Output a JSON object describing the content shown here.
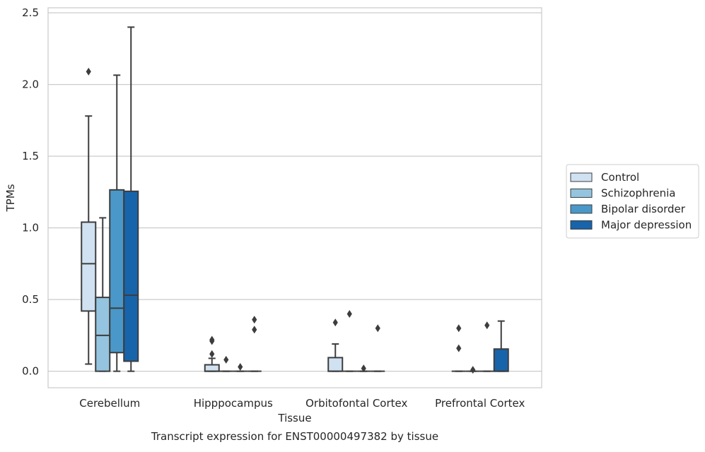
{
  "caption": "Transcript expression for ENST00000497382 by tissue",
  "chart_data": {
    "type": "box",
    "xlabel": "Tissue",
    "ylabel": "TPMs",
    "ylim": [
      -0.115,
      2.535
    ],
    "yticks": [
      0.0,
      0.5,
      1.0,
      1.5,
      2.0,
      2.5
    ],
    "ytick_labels": [
      "0.0",
      "0.5",
      "1.0",
      "1.5",
      "2.0",
      "2.5"
    ],
    "categories": [
      "Cerebellum",
      "Hipppocampus",
      "Orbitofontal Cortex",
      "Prefrontal Cortex"
    ],
    "grid": "horizontal",
    "legend_position": "right",
    "series": [
      {
        "name": "Control",
        "color": "#d0e1f2",
        "boxes": [
          {
            "whislo": 0.05,
            "q1": 0.42,
            "med": 0.75,
            "q3": 1.04,
            "whishi": 1.78,
            "fliers": [
              2.09
            ]
          },
          {
            "whislo": 0.0,
            "q1": 0.0,
            "med": 0.0,
            "q3": 0.045,
            "whishi": 0.09,
            "fliers": [
              0.12,
              0.21,
              0.22
            ]
          },
          {
            "whislo": 0.0,
            "q1": 0.0,
            "med": 0.0,
            "q3": 0.095,
            "whishi": 0.19,
            "fliers": [
              0.34
            ]
          },
          {
            "whislo": 0.0,
            "q1": 0.0,
            "med": 0.0,
            "q3": 0.0,
            "whishi": 0.0,
            "fliers": [
              0.16,
              0.3
            ]
          }
        ]
      },
      {
        "name": "Schizophrenia",
        "color": "#94c4df",
        "boxes": [
          {
            "whislo": 0.0,
            "q1": 0.0,
            "med": 0.25,
            "q3": 0.515,
            "whishi": 1.07,
            "fliers": []
          },
          {
            "whislo": 0.0,
            "q1": 0.0,
            "med": 0.0,
            "q3": 0.0,
            "whishi": 0.0,
            "fliers": [
              0.08
            ]
          },
          {
            "whislo": 0.0,
            "q1": 0.0,
            "med": 0.0,
            "q3": 0.0,
            "whishi": 0.0,
            "fliers": [
              0.4
            ]
          },
          {
            "whislo": 0.0,
            "q1": 0.0,
            "med": 0.0,
            "q3": 0.0,
            "whishi": 0.0,
            "fliers": [
              0.01
            ]
          }
        ]
      },
      {
        "name": "Bipolar disorder",
        "color": "#4a98c9",
        "boxes": [
          {
            "whislo": 0.0,
            "q1": 0.13,
            "med": 0.44,
            "q3": 1.265,
            "whishi": 2.065,
            "fliers": []
          },
          {
            "whislo": 0.0,
            "q1": 0.0,
            "med": 0.0,
            "q3": 0.0,
            "whishi": 0.0,
            "fliers": [
              0.03
            ]
          },
          {
            "whislo": 0.0,
            "q1": 0.0,
            "med": 0.0,
            "q3": 0.0,
            "whishi": 0.0,
            "fliers": [
              0.02
            ]
          },
          {
            "whislo": 0.0,
            "q1": 0.0,
            "med": 0.0,
            "q3": 0.0,
            "whishi": 0.0,
            "fliers": [
              0.32
            ]
          }
        ]
      },
      {
        "name": "Major depression",
        "color": "#1764ab",
        "boxes": [
          {
            "whislo": 0.0,
            "q1": 0.07,
            "med": 0.53,
            "q3": 1.255,
            "whishi": 2.4,
            "fliers": []
          },
          {
            "whislo": 0.0,
            "q1": 0.0,
            "med": 0.0,
            "q3": 0.0,
            "whishi": 0.0,
            "fliers": [
              0.29,
              0.36
            ]
          },
          {
            "whislo": 0.0,
            "q1": 0.0,
            "med": 0.0,
            "q3": 0.0,
            "whishi": 0.0,
            "fliers": [
              0.3
            ]
          },
          {
            "whislo": 0.0,
            "q1": 0.0,
            "med": 0.0,
            "q3": 0.155,
            "whishi": 0.35,
            "fliers": []
          }
        ]
      }
    ]
  }
}
